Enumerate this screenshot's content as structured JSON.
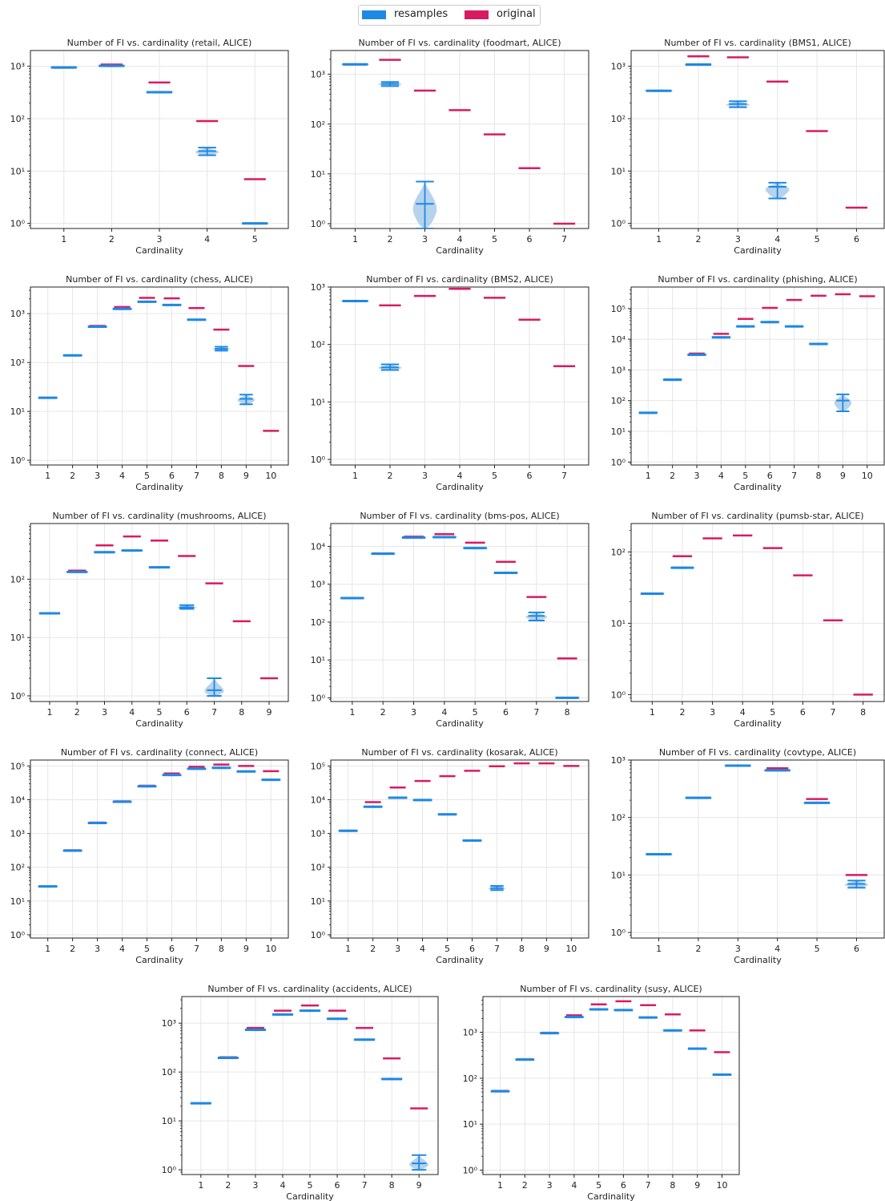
{
  "legend": {
    "items": [
      {
        "label": "resamples",
        "color": "#1e88e5"
      },
      {
        "label": "original",
        "color": "#d81b60"
      }
    ]
  },
  "chart_data": [
    {
      "type": "violin",
      "title": "Number of FI vs. cardinality (retail, ALICE)",
      "xlabel": "Cardinality",
      "ylabel": "",
      "yscale": "log",
      "ylim": [
        0.8,
        2000
      ],
      "categories": [
        "1",
        "2",
        "3",
        "4",
        "5"
      ],
      "series": [
        {
          "name": "resamples",
          "values": [
            950,
            1020,
            320,
            [
              20,
              24,
              28
            ],
            1
          ]
        },
        {
          "name": "original",
          "values": [
            940,
            1080,
            490,
            90,
            7
          ]
        }
      ]
    },
    {
      "type": "violin",
      "title": "Number of FI vs. cardinality (foodmart, ALICE)",
      "xlabel": "Cardinality",
      "ylabel": "",
      "yscale": "log",
      "ylim": [
        0.8,
        3000
      ],
      "categories": [
        "1",
        "2",
        "3",
        "4",
        "5",
        "6",
        "7"
      ],
      "series": [
        {
          "name": "resamples",
          "values": [
            1580,
            [
              580,
              640,
              700
            ],
            [
              0.8,
              2.5,
              7
            ],
            null,
            null,
            null,
            null
          ]
        },
        {
          "name": "original",
          "values": [
            1570,
            1950,
            470,
            190,
            62,
            13,
            1
          ]
        }
      ]
    },
    {
      "type": "violin",
      "title": "Number of FI vs. cardinality (BMS1, ALICE)",
      "xlabel": "Cardinality",
      "ylabel": "",
      "yscale": "log",
      "ylim": [
        0.8,
        2000
      ],
      "categories": [
        "1",
        "2",
        "3",
        "4",
        "5",
        "6"
      ],
      "series": [
        {
          "name": "resamples",
          "values": [
            340,
            1080,
            [
              165,
              190,
              215
            ],
            [
              3,
              5,
              6
            ],
            null,
            null
          ]
        },
        {
          "name": "original",
          "values": [
            340,
            1550,
            1480,
            510,
            58,
            2
          ]
        }
      ]
    },
    {
      "type": "violin",
      "title": "Number of FI vs. cardinality (chess, ALICE)",
      "xlabel": "Cardinality",
      "ylabel": "",
      "yscale": "log",
      "ylim": [
        0.8,
        3500
      ],
      "categories": [
        "1",
        "2",
        "3",
        "4",
        "5",
        "6",
        "7",
        "8",
        "9",
        "10"
      ],
      "series": [
        {
          "name": "resamples",
          "values": [
            19,
            140,
            540,
            1250,
            1750,
            1500,
            750,
            [
              175,
              190,
              210
            ],
            [
              14,
              18,
              22
            ],
            null
          ]
        },
        {
          "name": "original",
          "values": [
            19,
            140,
            560,
            1370,
            2100,
            2050,
            1300,
            470,
            85,
            4
          ]
        }
      ]
    },
    {
      "type": "violin",
      "title": "Number of FI vs. cardinality (BMS2, ALICE)",
      "xlabel": "Cardinality",
      "ylabel": "",
      "yscale": "log",
      "ylim": [
        0.8,
        1000
      ],
      "categories": [
        "1",
        "2",
        "3",
        "4",
        "5",
        "6",
        "7"
      ],
      "series": [
        {
          "name": "resamples",
          "values": [
            570,
            [
              36,
              40,
              45
            ],
            null,
            null,
            null,
            null,
            null
          ]
        },
        {
          "name": "original",
          "values": [
            570,
            480,
            700,
            930,
            650,
            270,
            42
          ]
        }
      ]
    },
    {
      "type": "violin",
      "title": "Number of FI vs. cardinality (phishing, ALICE)",
      "xlabel": "Cardinality",
      "ylabel": "",
      "yscale": "log",
      "ylim": [
        0.8,
        500000
      ],
      "categories": [
        "1",
        "2",
        "3",
        "4",
        "5",
        "6",
        "7",
        "8",
        "9",
        "10"
      ],
      "series": [
        {
          "name": "resamples",
          "values": [
            40,
            480,
            3100,
            11500,
            26000,
            36000,
            26000,
            7000,
            [
              45,
              100,
              160
            ],
            null
          ]
        },
        {
          "name": "original",
          "values": [
            40,
            490,
            3400,
            15000,
            46000,
            105000,
            190000,
            260000,
            290000,
            250000
          ]
        }
      ]
    },
    {
      "type": "violin",
      "title": "Number of FI vs. cardinality (mushrooms, ALICE)",
      "xlabel": "Cardinality",
      "ylabel": "",
      "yscale": "log",
      "ylim": [
        0.8,
        900
      ],
      "categories": [
        "1",
        "2",
        "3",
        "4",
        "5",
        "6",
        "7",
        "8",
        "9"
      ],
      "series": [
        {
          "name": "resamples",
          "values": [
            26,
            133,
            290,
            310,
            160,
            [
              31,
              33,
              36
            ],
            [
              1,
              1.25,
              2
            ],
            null,
            null
          ]
        },
        {
          "name": "original",
          "values": [
            26,
            140,
            380,
            540,
            460,
            250,
            85,
            19,
            2
          ]
        }
      ]
    },
    {
      "type": "violin",
      "title": "Number of FI vs. cardinality (bms-pos, ALICE)",
      "xlabel": "Cardinality",
      "ylabel": "",
      "yscale": "log",
      "ylim": [
        0.8,
        40000
      ],
      "categories": [
        "1",
        "2",
        "3",
        "4",
        "5",
        "6",
        "7",
        "8"
      ],
      "series": [
        {
          "name": "resamples",
          "values": [
            430,
            6400,
            17000,
            17500,
            9000,
            2000,
            [
              110,
              145,
              180
            ],
            1
          ]
        },
        {
          "name": "original",
          "values": [
            430,
            6500,
            18000,
            21000,
            12500,
            3900,
            460,
            11
          ]
        }
      ]
    },
    {
      "type": "violin",
      "title": "Number of FI vs. cardinality (pumsb-star, ALICE)",
      "xlabel": "Cardinality",
      "ylabel": "",
      "yscale": "log",
      "ylim": [
        0.8,
        250
      ],
      "categories": [
        "1",
        "2",
        "3",
        "4",
        "5",
        "6",
        "7",
        "8"
      ],
      "series": [
        {
          "name": "resamples",
          "values": [
            26,
            60,
            null,
            null,
            null,
            null,
            null,
            null
          ]
        },
        {
          "name": "original",
          "values": [
            26,
            87,
            155,
            170,
            113,
            47,
            11,
            1
          ]
        }
      ]
    },
    {
      "type": "violin",
      "title": "Number of FI vs. cardinality (connect, ALICE)",
      "xlabel": "Cardinality",
      "ylabel": "",
      "yscale": "log",
      "ylim": [
        0.8,
        150000
      ],
      "categories": [
        "1",
        "2",
        "3",
        "4",
        "5",
        "6",
        "7",
        "8",
        "9",
        "10"
      ],
      "series": [
        {
          "name": "resamples",
          "values": [
            27,
            310,
            2050,
            8700,
            25000,
            54000,
            83000,
            88000,
            69000,
            39000
          ]
        },
        {
          "name": "original",
          "values": [
            27,
            320,
            2100,
            9000,
            26000,
            60000,
            95000,
            110000,
            100000,
            70000
          ]
        }
      ]
    },
    {
      "type": "violin",
      "title": "Number of FI vs. cardinality (kosarak, ALICE)",
      "xlabel": "Cardinality",
      "ylabel": "",
      "yscale": "log",
      "ylim": [
        0.8,
        150000
      ],
      "categories": [
        "1",
        "2",
        "3",
        "4",
        "5",
        "6",
        "7",
        "8",
        "9",
        "10"
      ],
      "series": [
        {
          "name": "resamples",
          "values": [
            1200,
            6200,
            11500,
            9800,
            3700,
            620,
            [
              21,
              24,
              28
            ],
            null,
            null,
            null
          ]
        },
        {
          "name": "original",
          "values": [
            1210,
            8500,
            23000,
            36000,
            50000,
            72000,
            98000,
            120000,
            120000,
            100000
          ]
        }
      ]
    },
    {
      "type": "violin",
      "title": "Number of FI vs. cardinality (covtype, ALICE)",
      "xlabel": "Cardinality",
      "ylabel": "",
      "yscale": "log",
      "ylim": [
        0.8,
        1000
      ],
      "categories": [
        "1",
        "2",
        "3",
        "4",
        "5",
        "6"
      ],
      "series": [
        {
          "name": "resamples",
          "values": [
            23,
            220,
            800,
            660,
            180,
            [
              6,
              7,
              8
            ]
          ]
        },
        {
          "name": "original",
          "values": [
            23,
            220,
            800,
            720,
            210,
            10
          ]
        }
      ]
    },
    {
      "type": "violin",
      "title": "Number of FI vs. cardinality (accidents, ALICE)",
      "xlabel": "Cardinality",
      "ylabel": "",
      "yscale": "log",
      "ylim": [
        0.8,
        3500
      ],
      "categories": [
        "1",
        "2",
        "3",
        "4",
        "5",
        "6",
        "7",
        "8",
        "9"
      ],
      "series": [
        {
          "name": "resamples",
          "values": [
            23,
            195,
            730,
            1500,
            1800,
            1230,
            460,
            72,
            [
              1,
              1.35,
              2
            ]
          ]
        },
        {
          "name": "original",
          "values": [
            23,
            200,
            800,
            1800,
            2300,
            1800,
            800,
            190,
            18
          ]
        }
      ]
    },
    {
      "type": "violin",
      "title": "Number of FI vs. cardinality (susy, ALICE)",
      "xlabel": "Cardinality",
      "ylabel": "",
      "yscale": "log",
      "ylim": [
        0.8,
        6000
      ],
      "categories": [
        "1",
        "2",
        "3",
        "4",
        "5",
        "6",
        "7",
        "8",
        "9",
        "10"
      ],
      "series": [
        {
          "name": "resamples",
          "values": [
            52,
            255,
            960,
            2150,
            3150,
            3050,
            2100,
            1100,
            440,
            120
          ]
        },
        {
          "name": "original",
          "values": [
            53,
            260,
            980,
            2350,
            4050,
            4750,
            3900,
            2450,
            1100,
            370
          ]
        }
      ]
    }
  ]
}
